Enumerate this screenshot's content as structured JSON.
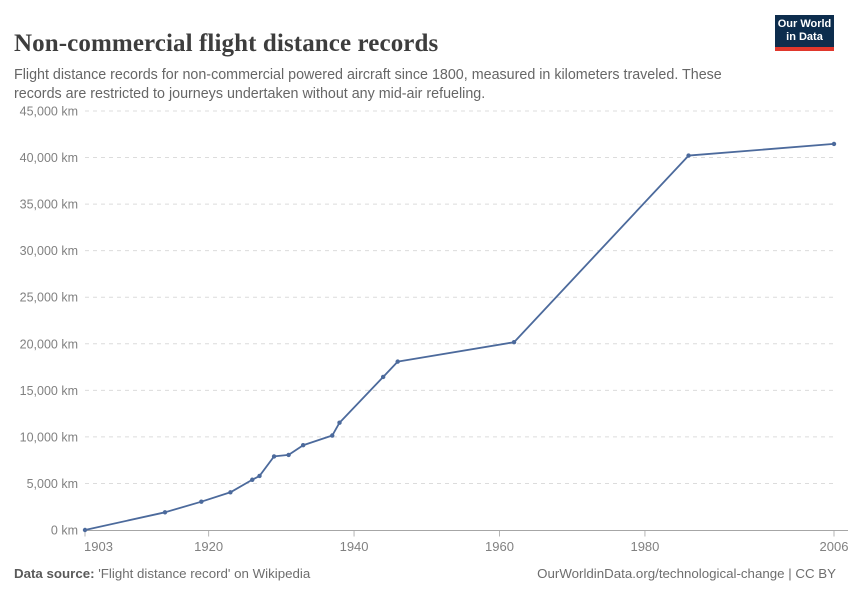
{
  "header": {
    "logo": {
      "line1": "Our World",
      "line2": "in Data",
      "bg_color": "#0d2d4d",
      "accent_color": "#e0372c"
    }
  },
  "chart_data": {
    "type": "line",
    "title": "Non-commercial flight distance records",
    "subtitle": "Flight distance records for non-commercial powered aircraft since 1800, measured in kilometers traveled. These records are restricted to journeys undertaken without any mid-air refueling.",
    "series": [
      {
        "name": "Non-commercial flight distance record",
        "points": [
          [
            1903,
            0.26
          ],
          [
            1914,
            1900
          ],
          [
            1919,
            3040
          ],
          [
            1923,
            4050
          ],
          [
            1926,
            5396
          ],
          [
            1927,
            5809
          ],
          [
            1929,
            7905
          ],
          [
            1931,
            8065
          ],
          [
            1933,
            9104
          ],
          [
            1937,
            10148
          ],
          [
            1938,
            11520
          ],
          [
            1944,
            16435
          ],
          [
            1946,
            18083
          ],
          [
            1962,
            20169
          ],
          [
            1986,
            40212
          ],
          [
            2006,
            41467
          ]
        ]
      }
    ],
    "xlim": [
      1903,
      2006
    ],
    "ylim": [
      0,
      45000
    ],
    "x_ticks": [
      1903,
      1920,
      1940,
      1960,
      1980,
      2006
    ],
    "y_ticks": [
      0,
      5000,
      10000,
      15000,
      20000,
      25000,
      30000,
      35000,
      40000,
      45000
    ],
    "y_tick_suffix": " km",
    "grid": "horizontal-dashed",
    "legend": "none",
    "line_color": "#4C6A9C",
    "marker": "dot"
  },
  "footer": {
    "source_label": "Data source:",
    "source_text": " 'Flight distance record' on Wikipedia",
    "rights_text": "OurWorldinData.org/technological-change | CC BY"
  }
}
